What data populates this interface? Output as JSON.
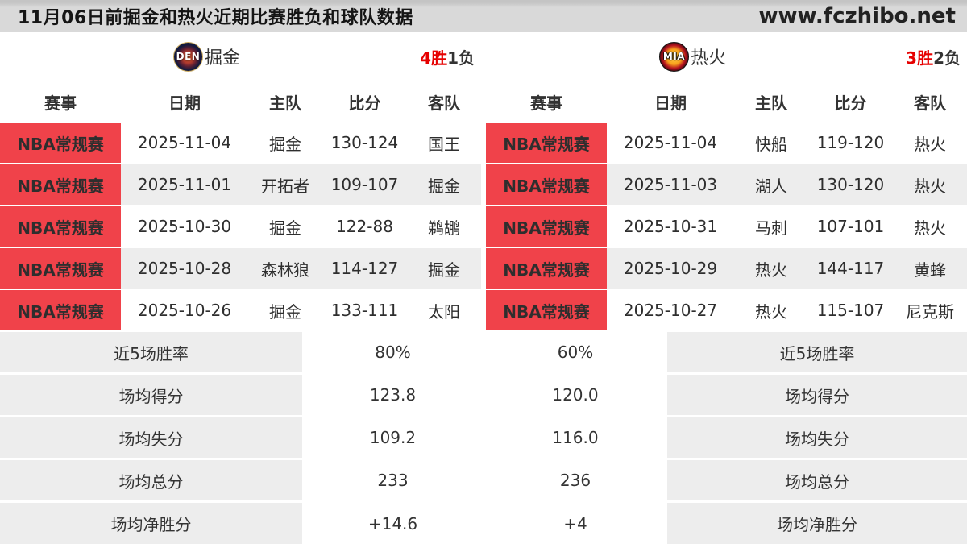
{
  "page": {
    "title": "11月06日前掘金和热火近期比赛胜负和球队数据",
    "site": "www.fczhibo.net"
  },
  "colors": {
    "badge_red": "#f0424a",
    "win_red": "#e60000",
    "row_alt_gray": "#ededed",
    "topbar_gray": "#d9d9d9"
  },
  "columns": {
    "league": "赛事",
    "date": "日期",
    "home": "主队",
    "score": "比分",
    "away": "客队"
  },
  "left": {
    "logo_abbr": "DEN",
    "team": "掘金",
    "record_win": "4胜",
    "record_loss": "1负",
    "rows": [
      {
        "league": "NBA常规赛",
        "date": "2025-11-04",
        "home": "掘金",
        "score": "130-124",
        "away": "国王"
      },
      {
        "league": "NBA常规赛",
        "date": "2025-11-01",
        "home": "开拓者",
        "score": "109-107",
        "away": "掘金"
      },
      {
        "league": "NBA常规赛",
        "date": "2025-10-30",
        "home": "掘金",
        "score": "122-88",
        "away": "鹈鹕"
      },
      {
        "league": "NBA常规赛",
        "date": "2025-10-28",
        "home": "森林狼",
        "score": "114-127",
        "away": "掘金"
      },
      {
        "league": "NBA常规赛",
        "date": "2025-10-26",
        "home": "掘金",
        "score": "133-111",
        "away": "太阳"
      }
    ],
    "stats": [
      {
        "label": "近5场胜率",
        "value": "80%"
      },
      {
        "label": "场均得分",
        "value": "123.8"
      },
      {
        "label": "场均失分",
        "value": "109.2"
      },
      {
        "label": "场均总分",
        "value": "233"
      },
      {
        "label": "场均净胜分",
        "value": "+14.6"
      }
    ]
  },
  "right": {
    "logo_abbr": "MIA",
    "team": "热火",
    "record_win": "3胜",
    "record_loss": "2负",
    "rows": [
      {
        "league": "NBA常规赛",
        "date": "2025-11-04",
        "home": "快船",
        "score": "119-120",
        "away": "热火"
      },
      {
        "league": "NBA常规赛",
        "date": "2025-11-03",
        "home": "湖人",
        "score": "130-120",
        "away": "热火"
      },
      {
        "league": "NBA常规赛",
        "date": "2025-10-31",
        "home": "马刺",
        "score": "107-101",
        "away": "热火"
      },
      {
        "league": "NBA常规赛",
        "date": "2025-10-29",
        "home": "热火",
        "score": "144-117",
        "away": "黄蜂"
      },
      {
        "league": "NBA常规赛",
        "date": "2025-10-27",
        "home": "热火",
        "score": "115-107",
        "away": "尼克斯"
      }
    ],
    "stats": [
      {
        "label": "近5场胜率",
        "value": "60%"
      },
      {
        "label": "场均得分",
        "value": "120.0"
      },
      {
        "label": "场均失分",
        "value": "116.0"
      },
      {
        "label": "场均总分",
        "value": "236"
      },
      {
        "label": "场均净胜分",
        "value": "+4"
      }
    ]
  }
}
